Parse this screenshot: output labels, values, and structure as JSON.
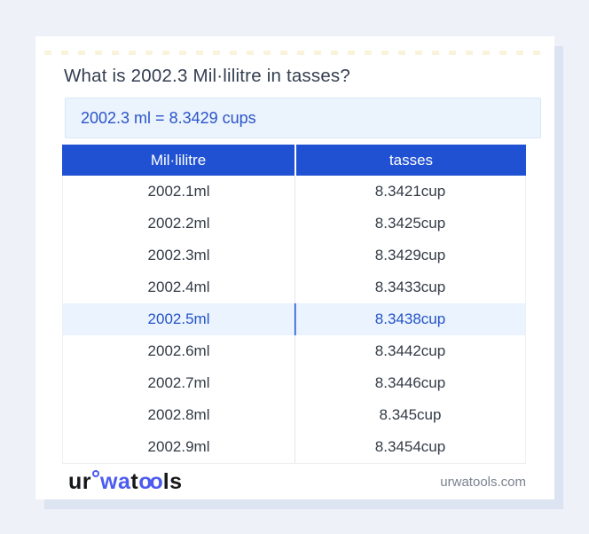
{
  "page": {
    "title": "What is 2002.3 Mil·lilitre in tasses?",
    "result": "2002.3 ml = 8.3429 cups",
    "footer": {
      "logo": {
        "ur": "ur",
        "wa": "wa",
        "t": "t",
        "oo": "oo",
        "ls": "ls"
      },
      "domain": "urwatools.com"
    }
  },
  "table": {
    "headers": [
      "Mil·lilitre",
      "tasses"
    ],
    "highlighted_index": 4,
    "rows": [
      {
        "ml": "2002.1ml",
        "cup": "8.3421cup"
      },
      {
        "ml": "2002.2ml",
        "cup": "8.3425cup"
      },
      {
        "ml": "2002.3ml",
        "cup": "8.3429cup"
      },
      {
        "ml": "2002.4ml",
        "cup": "8.3433cup"
      },
      {
        "ml": "2002.5ml",
        "cup": "8.3438cup"
      },
      {
        "ml": "2002.6ml",
        "cup": "8.3442cup"
      },
      {
        "ml": "2002.7ml",
        "cup": "8.3446cup"
      },
      {
        "ml": "2002.8ml",
        "cup": "8.345cup"
      },
      {
        "ml": "2002.9ml",
        "cup": "8.3454cup"
      }
    ]
  },
  "colors": {
    "header_blue": "#2051D3",
    "accent_text_blue": "#2B55C8",
    "highlight_row_bg": "#EAF3FE",
    "highlight_divider_blue": "#1A50D5",
    "logo_blue": "#4C5BF0",
    "page_bg": "#EFF1F8"
  }
}
